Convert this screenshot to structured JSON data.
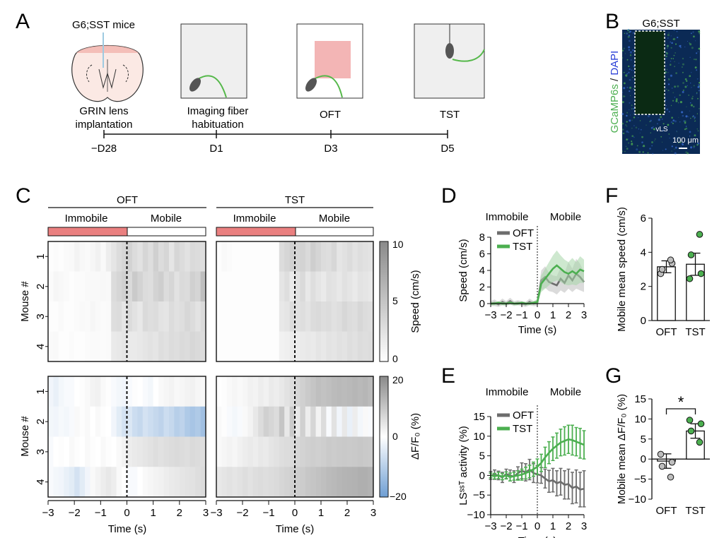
{
  "panels": {
    "A": {
      "letter": "A",
      "mice_label": "G6;SST mice",
      "stages": [
        {
          "line1": "GRIN lens",
          "line2": "implantation",
          "day": "−D28"
        },
        {
          "line1": "Imaging fiber",
          "line2": "habituation",
          "day": "D1"
        },
        {
          "line1": "OFT",
          "line2": "",
          "day": "D3"
        },
        {
          "line1": "TST",
          "line2": "",
          "day": "D5"
        }
      ]
    },
    "B": {
      "letter": "B",
      "title": "G6;SST",
      "ylabel_green": "GCaMP6s",
      "ylabel_sep": " / ",
      "ylabel_blue": "DAPI",
      "region": "vLS",
      "scalebar": "100 μm"
    },
    "C": {
      "letter": "C",
      "groups": [
        "OFT",
        "TST"
      ],
      "states": [
        "Immobile",
        "Mobile"
      ],
      "mouse_axis": "Mouse #",
      "mice": [
        "1",
        "2",
        "3",
        "4"
      ],
      "speed_colorbar": {
        "label": "Speed (cm/s)",
        "ticks": [
          "10",
          "5",
          "0"
        ]
      },
      "df_colorbar": {
        "label": "ΔF/F₀ (%)",
        "ticks": [
          "20",
          "0",
          "−20"
        ]
      },
      "xticks": [
        "−3",
        "−2",
        "−1",
        "0",
        "1",
        "2",
        "3"
      ],
      "xlabel": "Time (s)"
    },
    "D": {
      "letter": "D",
      "states": [
        "Immobile",
        "Mobile"
      ]
    },
    "E": {
      "letter": "E",
      "states": [
        "Immobile",
        "Mobile"
      ]
    },
    "F": {
      "letter": "F"
    },
    "G": {
      "letter": "G",
      "sig": "*"
    }
  },
  "colors": {
    "oft": "#6d6d6d",
    "tst": "#4caf50",
    "tst_light": "#a5d6a7",
    "oft_light": "#bdbdbd",
    "immobile_bar": "#ea8080",
    "fiber_green": "#5cbf4a",
    "negative_blue": "#6e9ed3"
  },
  "chart_data": [
    {
      "id": "D",
      "type": "line",
      "xlabel": "Time (s)",
      "ylabel": "Speed (cm/s)",
      "xlim": [
        -3,
        3
      ],
      "ylim": [
        0,
        8
      ],
      "xticks": [
        -3,
        -2,
        -1,
        0,
        1,
        2,
        3
      ],
      "yticks": [
        0,
        2,
        4,
        6,
        8
      ],
      "series": [
        {
          "name": "OFT",
          "x": [
            -3,
            -2.75,
            -2.5,
            -2.25,
            -2,
            -1.75,
            -1.5,
            -1.25,
            -1,
            -0.75,
            -0.5,
            -0.25,
            0,
            0.25,
            0.5,
            0.75,
            1,
            1.25,
            1.5,
            1.75,
            2,
            2.25,
            2.5,
            2.75,
            3
          ],
          "y": [
            0,
            0.1,
            -0.1,
            0.2,
            0,
            0.3,
            0,
            0.1,
            0,
            -0.1,
            0.2,
            0,
            0.1,
            2.8,
            3.2,
            2.6,
            2.4,
            2.2,
            3.0,
            2.5,
            3.4,
            2.8,
            3.6,
            3.2,
            2.6
          ],
          "err": [
            0.3,
            0.4,
            0.3,
            0.4,
            0.3,
            0.4,
            0.3,
            0.3,
            0.3,
            0.3,
            0.4,
            0.3,
            0.4,
            1.2,
            1.3,
            1.1,
            1.0,
            1.1,
            1.4,
            1.2,
            1.6,
            1.4,
            1.8,
            1.6,
            1.2
          ]
        },
        {
          "name": "TST",
          "x": [
            -3,
            -2.75,
            -2.5,
            -2.25,
            -2,
            -1.75,
            -1.5,
            -1.25,
            -1,
            -0.75,
            -0.5,
            -0.25,
            0,
            0.25,
            0.5,
            0.75,
            1,
            1.25,
            1.5,
            1.75,
            2,
            2.25,
            2.5,
            2.75,
            3
          ],
          "y": [
            0,
            0,
            0.1,
            0,
            0,
            0.1,
            0,
            0,
            0.1,
            0,
            0,
            0.1,
            0.2,
            2.4,
            3.0,
            3.6,
            4.2,
            4.6,
            4.2,
            3.8,
            3.6,
            3.9,
            3.6,
            4.1,
            3.9
          ],
          "err": [
            0.2,
            0.2,
            0.2,
            0.2,
            0.2,
            0.2,
            0.2,
            0.2,
            0.2,
            0.2,
            0.2,
            0.2,
            0.3,
            1.0,
            1.2,
            1.4,
            1.6,
            1.8,
            1.6,
            1.5,
            1.4,
            1.6,
            1.4,
            1.6,
            1.4
          ]
        }
      ]
    },
    {
      "id": "E",
      "type": "line",
      "xlabel": "Time (s)",
      "ylabel": "LSˢˢᵀ activity (%)",
      "xlim": [
        -3,
        3
      ],
      "ylim": [
        -10,
        15
      ],
      "xticks": [
        -3,
        -2,
        -1,
        0,
        1,
        2,
        3
      ],
      "yticks": [
        -10,
        -5,
        0,
        5,
        10,
        15
      ],
      "series": [
        {
          "name": "OFT",
          "x": [
            -3,
            -2.75,
            -2.5,
            -2.25,
            -2,
            -1.75,
            -1.5,
            -1.25,
            -1,
            -0.75,
            -0.5,
            -0.25,
            0,
            0.25,
            0.5,
            0.75,
            1,
            1.25,
            1.5,
            1.75,
            2,
            2.25,
            2.5,
            2.75,
            3
          ],
          "y": [
            0,
            0.2,
            0,
            -0.5,
            0.4,
            0,
            -0.3,
            0.6,
            1.2,
            0.8,
            1.5,
            0.6,
            0.3,
            0,
            -0.8,
            -1.5,
            -1.2,
            -2.0,
            -1.6,
            -2.4,
            -2.2,
            -3.2,
            -2.8,
            -3.6,
            -3.4
          ],
          "err": [
            1.0,
            1.2,
            1.1,
            1.3,
            1.2,
            1.4,
            1.5,
            1.6,
            2.0,
            2.2,
            2.6,
            2.4,
            2.2,
            2.0,
            2.4,
            2.8,
            3.0,
            3.2,
            3.4,
            3.6,
            3.8,
            4.0,
            4.2,
            4.4,
            4.6
          ]
        },
        {
          "name": "TST",
          "x": [
            -3,
            -2.75,
            -2.5,
            -2.25,
            -2,
            -1.75,
            -1.5,
            -1.25,
            -1,
            -0.75,
            -0.5,
            -0.25,
            0,
            0.25,
            0.5,
            0.75,
            1,
            1.25,
            1.5,
            1.75,
            2,
            2.25,
            2.5,
            2.75,
            3
          ],
          "y": [
            0,
            -0.2,
            0,
            -0.3,
            0,
            -0.4,
            -0.2,
            0,
            0.2,
            0.6,
            1.0,
            1.6,
            2.2,
            3.2,
            4.6,
            5.8,
            6.8,
            7.6,
            8.4,
            8.8,
            9.2,
            9.0,
            8.6,
            8.2,
            7.8
          ],
          "err": [
            0.6,
            0.7,
            0.8,
            0.8,
            0.9,
            1.0,
            1.0,
            1.2,
            1.4,
            1.5,
            1.6,
            1.8,
            2.0,
            2.2,
            2.6,
            2.8,
            3.0,
            3.2,
            3.4,
            3.6,
            3.6,
            3.8,
            3.6,
            3.8,
            3.6
          ]
        }
      ]
    },
    {
      "id": "F",
      "type": "bar",
      "ylabel": "Mobile mean speed (cm/s)",
      "categories": [
        "OFT",
        "TST"
      ],
      "values": [
        3.15,
        3.3
      ],
      "errors": [
        0.35,
        0.65
      ],
      "points": [
        [
          2.75,
          3.35,
          3.0,
          3.55
        ],
        [
          2.45,
          2.75,
          3.85,
          5.05
        ]
      ],
      "ylim": [
        0,
        6
      ],
      "yticks": [
        0,
        2,
        4,
        6
      ]
    },
    {
      "id": "G",
      "type": "bar",
      "ylabel": "Mobile mean ΔF/F₀ (%)",
      "categories": [
        "OFT",
        "TST"
      ],
      "values": [
        -0.5,
        7.0
      ],
      "errors": [
        1.8,
        1.8
      ],
      "points": [
        [
          1.2,
          -0.8,
          -1.8,
          -4.5
        ],
        [
          9.7,
          8.8,
          7.0,
          4.2
        ]
      ],
      "ylim": [
        -10,
        15
      ],
      "yticks": [
        -10,
        -5,
        0,
        5,
        10,
        15
      ],
      "significance": "*"
    }
  ],
  "heatmaps": {
    "oft_speed": [
      [
        0.02,
        0.03,
        0.02,
        0.04,
        0.05,
        0.1,
        0.06,
        0.04,
        0.08,
        0.12,
        0.05,
        0.15,
        0.22,
        0.3,
        0.35,
        0.38,
        0.3,
        0.25,
        0.35,
        0.28,
        0.4,
        0.3,
        0.35,
        0.22,
        0.35,
        0.3,
        0.25,
        0.32,
        0.3,
        0.28
      ],
      [
        0.03,
        0.08,
        0.06,
        0.04,
        0.02,
        0.03,
        0.03,
        0.05,
        0.05,
        0.05,
        0.06,
        0.05,
        0.3,
        0.35,
        0.4,
        0.32,
        0.45,
        0.38,
        0.3,
        0.28,
        0.38,
        0.42,
        0.3,
        0.35,
        0.25,
        0.32,
        0.3,
        0.4,
        0.36,
        0.55
      ],
      [
        0.02,
        0.02,
        0.04,
        0.02,
        0.02,
        0.03,
        0.05,
        0.04,
        0.08,
        0.05,
        0.03,
        0.04,
        0.28,
        0.3,
        0.22,
        0.3,
        0.25,
        0.2,
        0.32,
        0.28,
        0.3,
        0.24,
        0.22,
        0.3,
        0.26,
        0.28,
        0.34,
        0.3,
        0.24,
        0.32
      ],
      [
        0.04,
        0.05,
        0.02,
        0.02,
        0.03,
        0.02,
        0.02,
        0.03,
        0.04,
        0.04,
        0.03,
        0.04,
        0.18,
        0.2,
        0.22,
        0.18,
        0.18,
        0.2,
        0.22,
        0.25,
        0.22,
        0.28,
        0.26,
        0.3,
        0.28,
        0.32,
        0.3,
        0.34,
        0.32,
        0.3
      ]
    ],
    "tst_speed": [
      [
        0.02,
        0.05,
        0.03,
        0.02,
        0.02,
        0.02,
        0.02,
        0.02,
        0.02,
        0.02,
        0.02,
        0.02,
        0.3,
        0.35,
        0.4,
        0.36,
        0.38,
        0.32,
        0.42,
        0.36,
        0.3,
        0.28,
        0.34,
        0.22,
        0.26,
        0.3,
        0.24,
        0.28,
        0.26,
        0.24
      ],
      [
        0.02,
        0.02,
        0.02,
        0.02,
        0.02,
        0.02,
        0.02,
        0.02,
        0.02,
        0.02,
        0.02,
        0.02,
        0.22,
        0.28,
        0.18,
        0.25,
        0.32,
        0.2,
        0.28,
        0.22,
        0.18,
        0.26,
        0.24,
        0.2,
        0.26,
        0.22,
        0.18,
        0.24,
        0.22,
        0.2
      ],
      [
        0.02,
        0.02,
        0.02,
        0.02,
        0.02,
        0.02,
        0.02,
        0.02,
        0.02,
        0.02,
        0.02,
        0.02,
        0.2,
        0.22,
        0.3,
        0.26,
        0.28,
        0.24,
        0.3,
        0.32,
        0.28,
        0.3,
        0.26,
        0.28,
        0.34,
        0.3,
        0.28,
        0.34,
        0.3,
        0.28
      ],
      [
        0.02,
        0.02,
        0.02,
        0.02,
        0.02,
        0.02,
        0.02,
        0.02,
        0.02,
        0.02,
        0.02,
        0.02,
        0.12,
        0.14,
        0.16,
        0.15,
        0.18,
        0.2,
        0.18,
        0.22,
        0.2,
        0.24,
        0.22,
        0.26,
        0.24,
        0.28,
        0.26,
        0.3,
        0.28,
        0.3
      ]
    ],
    "oft_df": [
      [
        -0.1,
        -0.15,
        -0.08,
        -0.05,
        -0.05,
        0.0,
        0.02,
        0.05,
        0.1,
        0.12,
        0.05,
        0.02,
        -0.05,
        -0.08,
        -0.1,
        -0.05,
        0.02,
        0.0,
        -0.05,
        -0.08,
        0.0,
        0.05,
        0.08,
        0.1,
        0.06,
        0.08,
        0.1,
        0.12,
        0.08,
        0.06
      ],
      [
        -0.08,
        -0.1,
        -0.06,
        -0.08,
        -0.05,
        0.05,
        0.02,
        0.05,
        0.0,
        0.05,
        0.02,
        0.0,
        -0.1,
        -0.2,
        -0.3,
        -0.25,
        -0.35,
        -0.4,
        -0.3,
        -0.35,
        -0.4,
        -0.45,
        -0.35,
        -0.4,
        -0.5,
        -0.45,
        -0.55,
        -0.6,
        -0.55,
        -0.65
      ],
      [
        -0.05,
        0.0,
        0.02,
        0.0,
        0.05,
        0.02,
        0.0,
        0.05,
        0.02,
        0.0,
        0.05,
        0.02,
        0.0,
        0.05,
        0.1,
        0.15,
        0.18,
        0.2,
        0.22,
        0.25,
        0.28,
        0.26,
        0.28,
        0.3,
        0.32,
        0.3,
        0.28,
        0.32,
        0.3,
        0.28
      ],
      [
        -0.05,
        -0.08,
        -0.1,
        -0.15,
        -0.2,
        -0.3,
        -0.2,
        -0.1,
        0.05,
        0.1,
        0.15,
        0.2,
        0.15,
        0.05,
        0.0,
        -0.05,
        -0.05,
        0.0,
        0.05,
        0.08,
        0.1,
        0.12,
        0.15,
        0.18,
        0.2,
        0.22,
        0.24,
        0.25,
        0.28,
        0.3
      ]
    ],
    "tst_df": [
      [
        0.0,
        0.02,
        0.05,
        0.08,
        0.05,
        0.08,
        0.12,
        0.1,
        0.15,
        0.12,
        0.18,
        0.15,
        0.2,
        0.25,
        0.3,
        0.35,
        0.4,
        0.45,
        0.5,
        0.55,
        0.52,
        0.55,
        0.58,
        0.6,
        0.58,
        0.6,
        0.62,
        0.6,
        0.62,
        0.58
      ],
      [
        0.05,
        0.02,
        -0.05,
        -0.08,
        -0.05,
        0.05,
        0.1,
        0.2,
        0.3,
        0.4,
        0.35,
        0.3,
        0.5,
        0.2,
        0.45,
        0.2,
        0.4,
        0.15,
        0.35,
        0.1,
        0.3,
        -0.05,
        0.25,
        -0.1,
        0.2,
        -0.15,
        0.15,
        -0.08,
        0.05,
        -0.05
      ],
      [
        0.05,
        0.08,
        0.1,
        0.08,
        0.12,
        0.15,
        0.18,
        0.15,
        0.2,
        0.18,
        0.22,
        0.25,
        0.28,
        0.3,
        0.32,
        0.35,
        0.38,
        0.4,
        0.42,
        0.4,
        0.42,
        0.45,
        0.44,
        0.45,
        0.46,
        0.45,
        0.46,
        0.48,
        0.46,
        0.45
      ],
      [
        0.2,
        0.22,
        0.25,
        0.22,
        0.25,
        0.28,
        0.25,
        0.28,
        0.3,
        0.28,
        0.3,
        0.32,
        0.35,
        0.38,
        0.4,
        0.42,
        0.44,
        0.48,
        0.5,
        0.52,
        0.55,
        0.58,
        0.6,
        0.62,
        0.64,
        0.65,
        0.66,
        0.68,
        0.68,
        0.66
      ]
    ]
  }
}
